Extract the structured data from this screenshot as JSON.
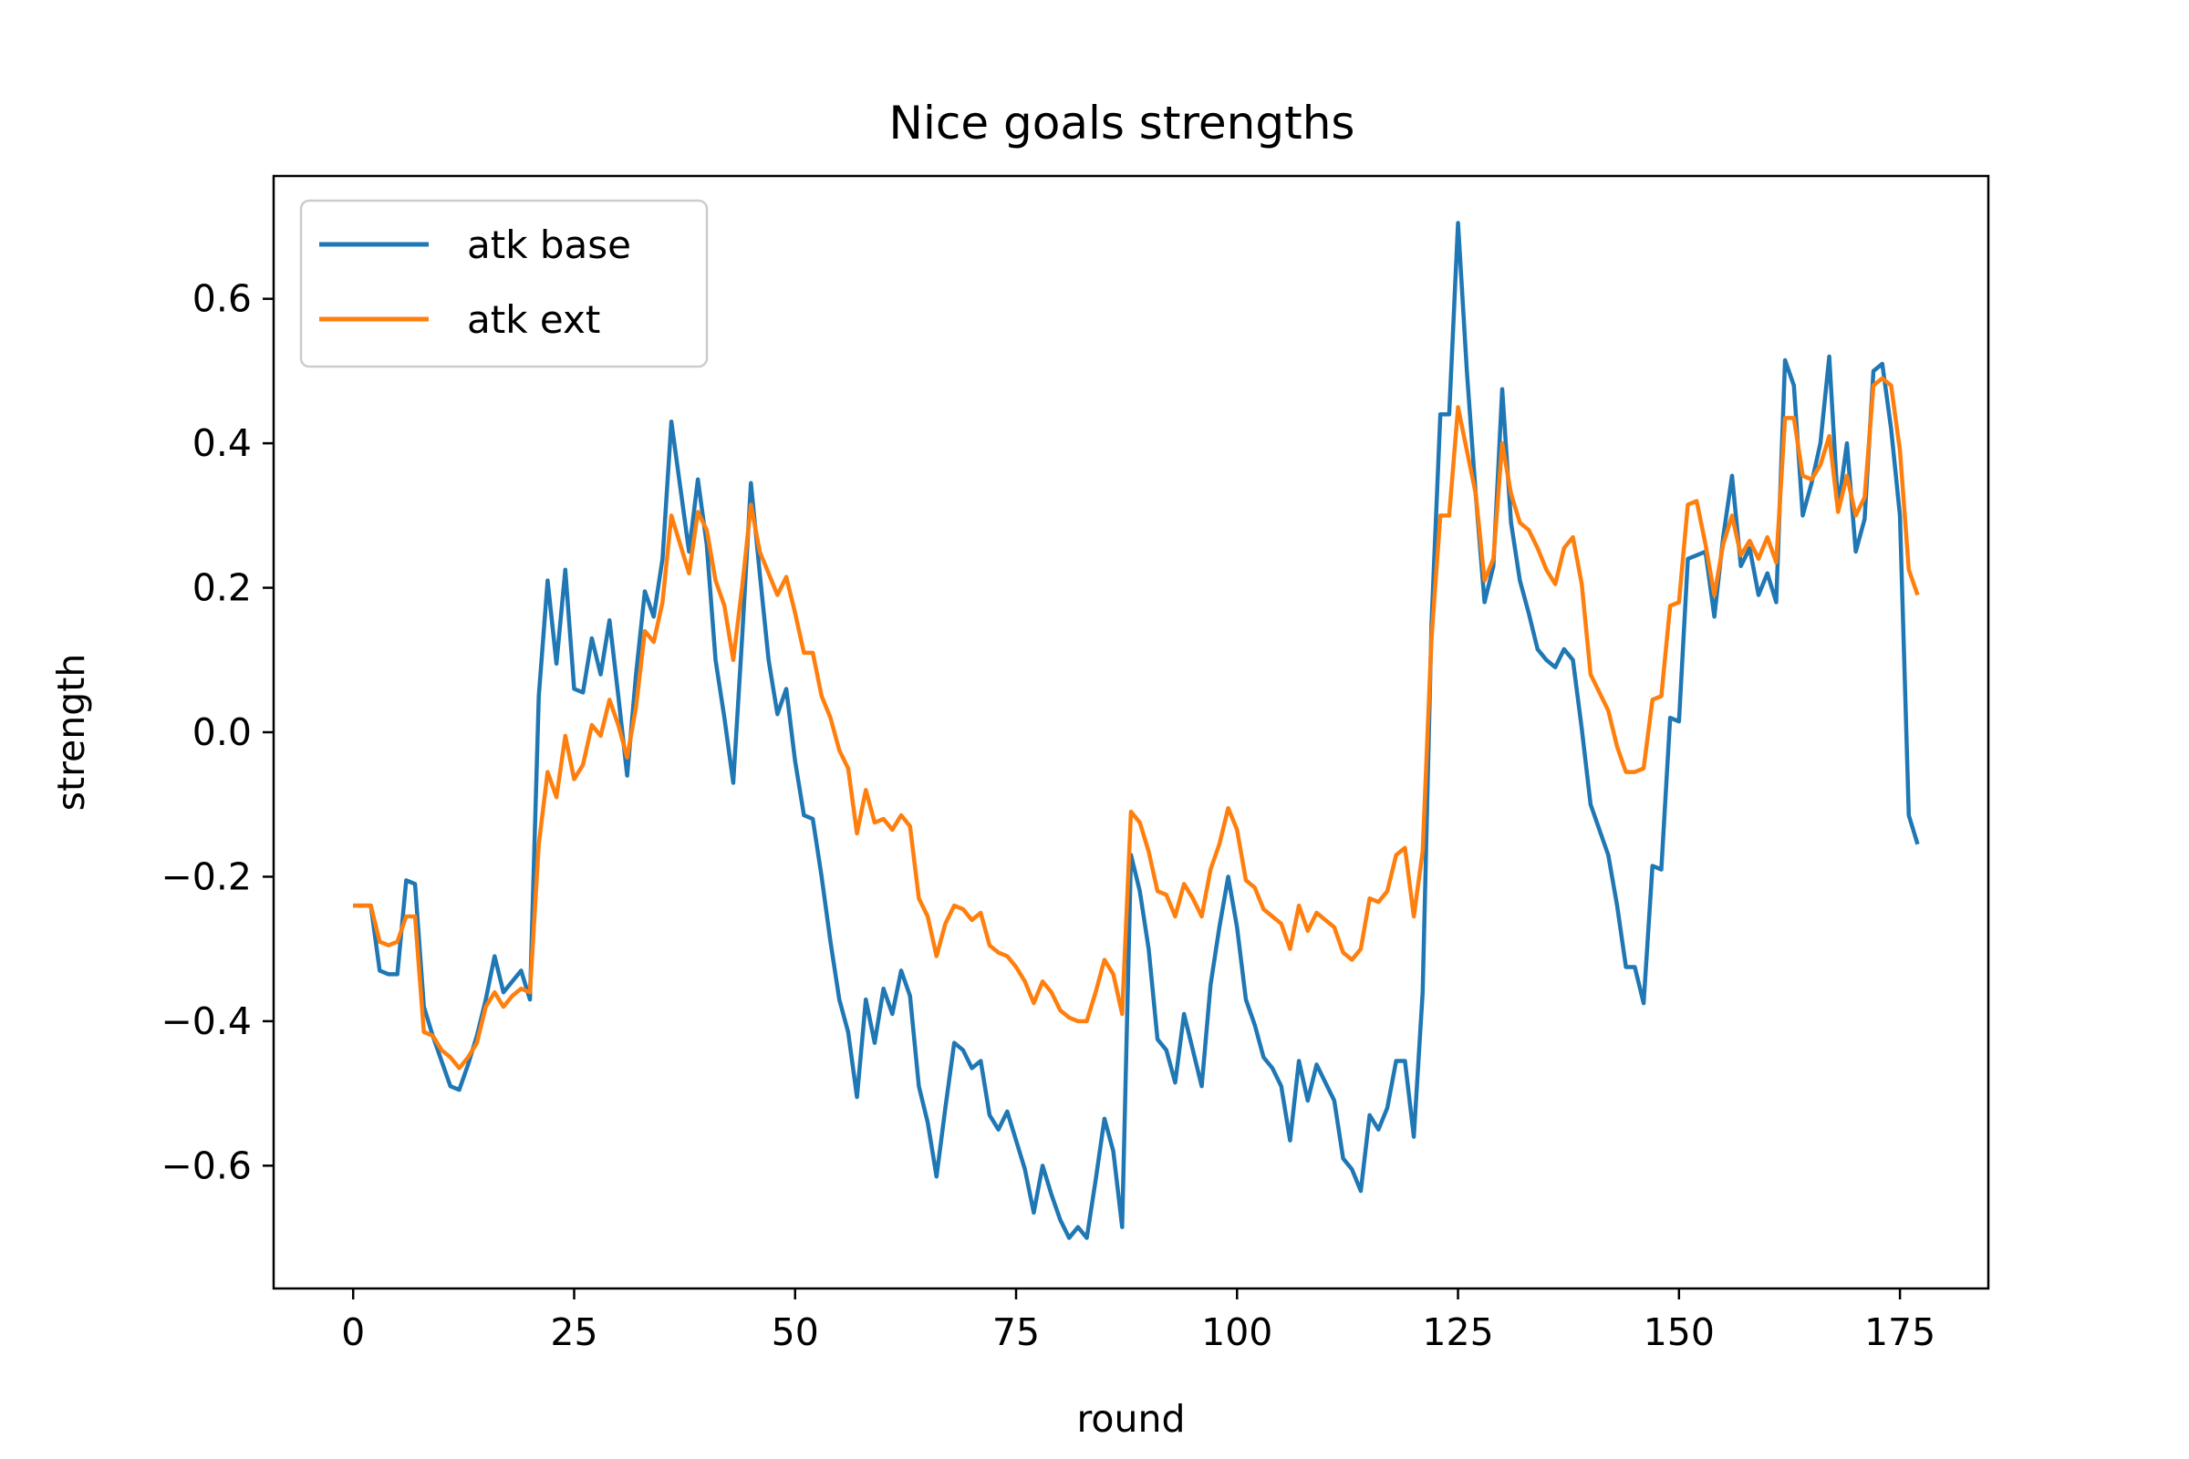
{
  "chart_data": {
    "type": "line",
    "title": "Nice goals strengths",
    "xlabel": "round",
    "ylabel": "strength",
    "xlim": [
      -9,
      185
    ],
    "ylim": [
      -0.77,
      0.77
    ],
    "xticks": [
      0,
      25,
      50,
      75,
      100,
      125,
      150,
      175
    ],
    "yticks": [
      -0.6,
      -0.4,
      -0.2,
      0.0,
      0.2,
      0.4,
      0.6
    ],
    "xtick_labels": [
      "0",
      "25",
      "50",
      "75",
      "100",
      "125",
      "150",
      "175"
    ],
    "ytick_labels": [
      "−0.6",
      "−0.4",
      "−0.2",
      "0.0",
      "0.2",
      "0.4",
      "0.6"
    ],
    "grid": false,
    "legend": {
      "position": "top-left"
    },
    "series": [
      {
        "name": "atk base",
        "color": "#1f77b4",
        "values": [
          -0.24,
          -0.24,
          -0.24,
          -0.33,
          -0.335,
          -0.335,
          -0.205,
          -0.21,
          -0.38,
          -0.42,
          -0.455,
          -0.49,
          -0.495,
          -0.46,
          -0.42,
          -0.37,
          -0.31,
          -0.36,
          -0.345,
          -0.33,
          -0.37,
          0.05,
          0.21,
          0.095,
          0.225,
          0.06,
          0.055,
          0.13,
          0.08,
          0.155,
          0.05,
          -0.06,
          0.08,
          0.195,
          0.16,
          0.24,
          0.43,
          0.34,
          0.25,
          0.35,
          0.26,
          0.1,
          0.02,
          -0.07,
          0.13,
          0.345,
          0.22,
          0.1,
          0.025,
          0.06,
          -0.04,
          -0.115,
          -0.12,
          -0.2,
          -0.29,
          -0.37,
          -0.415,
          -0.505,
          -0.37,
          -0.43,
          -0.355,
          -0.39,
          -0.33,
          -0.365,
          -0.49,
          -0.54,
          -0.615,
          -0.52,
          -0.43,
          -0.44,
          -0.465,
          -0.455,
          -0.53,
          -0.55,
          -0.525,
          -0.565,
          -0.605,
          -0.665,
          -0.6,
          -0.64,
          -0.675,
          -0.7,
          -0.685,
          -0.7,
          -0.62,
          -0.535,
          -0.58,
          -0.685,
          -0.17,
          -0.22,
          -0.3,
          -0.425,
          -0.44,
          -0.485,
          -0.39,
          -0.44,
          -0.49,
          -0.35,
          -0.27,
          -0.2,
          -0.27,
          -0.37,
          -0.405,
          -0.45,
          -0.465,
          -0.49,
          -0.565,
          -0.455,
          -0.51,
          -0.46,
          -0.485,
          -0.51,
          -0.59,
          -0.605,
          -0.635,
          -0.53,
          -0.55,
          -0.52,
          -0.455,
          -0.455,
          -0.56,
          -0.36,
          0.15,
          0.44,
          0.44,
          0.705,
          0.5,
          0.33,
          0.18,
          0.23,
          0.475,
          0.29,
          0.21,
          0.165,
          0.115,
          0.1,
          0.09,
          0.115,
          0.1,
          0.005,
          -0.1,
          -0.135,
          -0.17,
          -0.24,
          -0.325,
          -0.325,
          -0.375,
          -0.185,
          -0.19,
          0.02,
          0.015,
          0.24,
          0.245,
          0.25,
          0.16,
          0.27,
          0.355,
          0.23,
          0.255,
          0.19,
          0.22,
          0.18,
          0.515,
          0.48,
          0.3,
          0.345,
          0.4,
          0.52,
          0.31,
          0.4,
          0.25,
          0.295,
          0.5,
          0.51,
          0.42,
          0.3,
          -0.115,
          -0.155
        ]
      },
      {
        "name": "atk ext",
        "color": "#ff7f0e",
        "values": [
          -0.24,
          -0.24,
          -0.24,
          -0.29,
          -0.295,
          -0.29,
          -0.255,
          -0.255,
          -0.415,
          -0.42,
          -0.44,
          -0.45,
          -0.465,
          -0.45,
          -0.43,
          -0.38,
          -0.36,
          -0.38,
          -0.365,
          -0.355,
          -0.36,
          -0.155,
          -0.055,
          -0.09,
          -0.005,
          -0.065,
          -0.045,
          0.01,
          -0.005,
          0.045,
          0.01,
          -0.035,
          0.035,
          0.14,
          0.125,
          0.18,
          0.3,
          0.26,
          0.22,
          0.305,
          0.28,
          0.21,
          0.175,
          0.1,
          0.2,
          0.315,
          0.25,
          0.22,
          0.19,
          0.215,
          0.165,
          0.11,
          0.11,
          0.05,
          0.02,
          -0.025,
          -0.05,
          -0.14,
          -0.08,
          -0.125,
          -0.12,
          -0.135,
          -0.115,
          -0.13,
          -0.23,
          -0.255,
          -0.31,
          -0.265,
          -0.24,
          -0.245,
          -0.26,
          -0.25,
          -0.295,
          -0.305,
          -0.31,
          -0.325,
          -0.345,
          -0.375,
          -0.345,
          -0.36,
          -0.385,
          -0.395,
          -0.4,
          -0.4,
          -0.36,
          -0.315,
          -0.335,
          -0.39,
          -0.11,
          -0.125,
          -0.165,
          -0.22,
          -0.225,
          -0.255,
          -0.21,
          -0.23,
          -0.255,
          -0.19,
          -0.155,
          -0.105,
          -0.135,
          -0.205,
          -0.215,
          -0.245,
          -0.255,
          -0.265,
          -0.3,
          -0.24,
          -0.275,
          -0.25,
          -0.26,
          -0.27,
          -0.305,
          -0.315,
          -0.3,
          -0.23,
          -0.235,
          -0.22,
          -0.17,
          -0.16,
          -0.255,
          -0.165,
          0.13,
          0.3,
          0.3,
          0.45,
          0.39,
          0.33,
          0.21,
          0.24,
          0.4,
          0.33,
          0.29,
          0.28,
          0.255,
          0.225,
          0.205,
          0.255,
          0.27,
          0.205,
          0.08,
          0.055,
          0.03,
          -0.02,
          -0.055,
          -0.055,
          -0.05,
          0.045,
          0.05,
          0.175,
          0.18,
          0.315,
          0.32,
          0.26,
          0.19,
          0.26,
          0.3,
          0.245,
          0.265,
          0.24,
          0.27,
          0.235,
          0.435,
          0.435,
          0.355,
          0.35,
          0.37,
          0.41,
          0.305,
          0.355,
          0.3,
          0.325,
          0.48,
          0.49,
          0.48,
          0.39,
          0.225,
          0.19
        ]
      }
    ]
  }
}
